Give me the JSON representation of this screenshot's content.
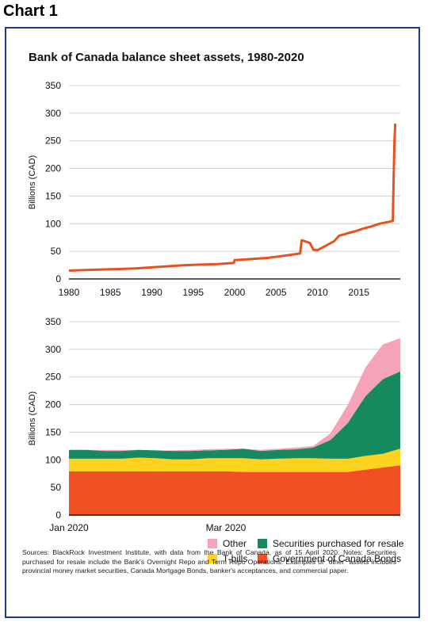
{
  "heading": "Chart 1",
  "title": "Bank of Canada balance sheet assets, 1980-2020",
  "colors": {
    "frame": "#1f3a8a",
    "line": "#e8501f",
    "gov_bonds": "#f04e23",
    "t_bills": "#ffd21f",
    "securities": "#168a5e",
    "other": "#f4a3b8",
    "grid": "#d0d0d0"
  },
  "chart_data": [
    {
      "type": "line",
      "title": "Bank of Canada balance sheet assets, 1980-2020",
      "ylabel": "Billions (CAD)",
      "xlabel": "",
      "ylim": [
        0,
        350
      ],
      "xlim": [
        1980,
        2019.5
      ],
      "yticks": [
        "0",
        "50",
        "100",
        "150",
        "200",
        "250",
        "300",
        "350"
      ],
      "xticks": [
        "1980",
        "1985",
        "1990",
        "1995",
        "2000",
        "2005",
        "2010",
        "2015"
      ],
      "grid": true,
      "series": [
        {
          "x": [
            1980,
            1982,
            1984,
            1986,
            1988,
            1990,
            1992,
            1994,
            1996,
            1998,
            1999.9,
            2000,
            2002,
            2004,
            2006,
            2007.9,
            2008.1,
            2008.5,
            2009.1,
            2009.5,
            2010,
            2011,
            2012,
            2012.6,
            2013.5,
            2014.5,
            2015.5,
            2016.5,
            2017.5,
            2018.5,
            2019.1,
            2019.2,
            2019.3,
            2019.4
          ],
          "y": [
            15,
            16,
            17,
            18,
            19,
            21,
            23,
            25,
            26,
            27,
            29,
            34,
            36,
            38,
            42,
            46,
            70,
            68,
            65,
            53,
            52,
            60,
            68,
            78,
            82,
            86,
            91,
            95,
            100,
            103,
            105,
            180,
            250,
            281
          ]
        }
      ]
    },
    {
      "type": "area",
      "stacked": true,
      "ylabel": "Billions (CAD)",
      "xlabel": "",
      "ylim": [
        0,
        350
      ],
      "yticks": [
        "0",
        "50",
        "100",
        "150",
        "200",
        "250",
        "300",
        "350"
      ],
      "xticks": [
        "Jan 2020",
        "Mar 2020"
      ],
      "grid": true,
      "x": [
        0,
        1,
        2,
        3,
        4,
        5,
        6,
        7,
        8,
        9,
        10,
        11,
        12,
        13,
        14,
        15,
        16,
        17,
        18,
        19
      ],
      "series": [
        {
          "name": "Government of Canada Bonds",
          "values": [
            79,
            79,
            79,
            79,
            79,
            79,
            79,
            79,
            79,
            79,
            78,
            78,
            78,
            78,
            78,
            78,
            78,
            82,
            86,
            90
          ]
        },
        {
          "name": "T-bills",
          "values": [
            23,
            23,
            23,
            23,
            25,
            24,
            22,
            22,
            24,
            24,
            25,
            23,
            24,
            25,
            25,
            24,
            24,
            25,
            25,
            30
          ]
        },
        {
          "name": "Securities purchased for resale",
          "values": [
            16,
            16,
            14,
            14,
            14,
            14,
            15,
            15,
            14,
            15,
            17,
            15,
            16,
            16,
            19,
            34,
            65,
            108,
            135,
            140
          ]
        },
        {
          "name": "Other",
          "values": [
            0,
            0,
            2,
            2,
            0,
            0,
            1,
            2,
            2,
            2,
            0,
            2,
            2,
            3,
            3,
            12,
            33,
            52,
            63,
            60
          ]
        }
      ]
    }
  ],
  "legend": [
    {
      "label": "Other",
      "color": "#f4a3b8"
    },
    {
      "label": "Securities purchased for resale",
      "color": "#168a5e"
    },
    {
      "label": "T-bills",
      "color": "#ffd21f"
    },
    {
      "label": "Government of Canada Bonds",
      "color": "#f04e23"
    }
  ],
  "sources": "Sources: BlackRock Investment Institute, with data from the Bank of Canada, as of 15 April 2020. Notes: Securities purchased for resale include the Bank's Overnight Repo and Term Repo Operations. Examples of \"other\" assets includes provincial money market securities, Canada Mortgage Bonds, banker's acceptances, and commercial paper."
}
